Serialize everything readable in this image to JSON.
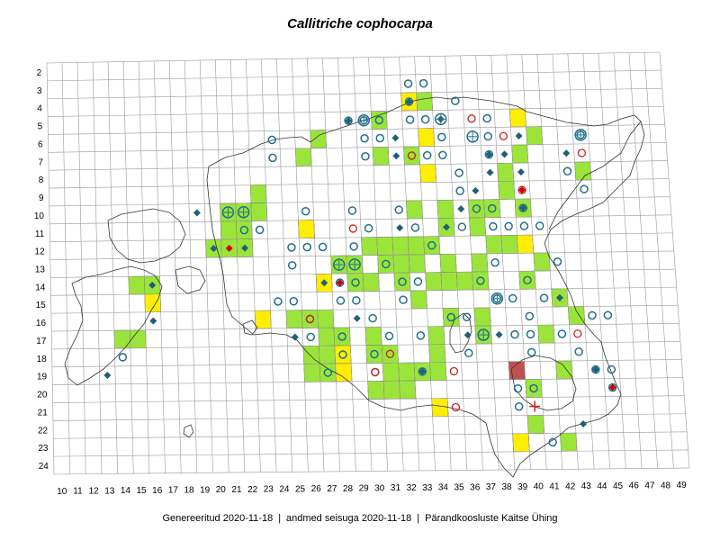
{
  "title": "Callitriche cophocarpa",
  "footer": {
    "generated": "Genereeritud 2020-11-18",
    "data_state": "andmed seisuga 2020-11-18",
    "organization": "Pärandkoosluste Kaitse Ühing",
    "separator": "|"
  },
  "grid": {
    "columns": [
      10,
      11,
      12,
      13,
      14,
      15,
      16,
      17,
      18,
      19,
      20,
      21,
      22,
      23,
      24,
      25,
      26,
      27,
      28,
      29,
      30,
      31,
      32,
      33,
      34,
      35,
      36,
      37,
      38,
      39,
      40,
      41,
      42,
      43,
      44,
      45,
      46,
      47,
      48,
      49
    ],
    "rows": [
      2,
      3,
      4,
      5,
      6,
      7,
      8,
      9,
      10,
      11,
      12,
      13,
      14,
      15,
      16,
      17,
      18,
      19,
      20,
      21,
      22,
      23,
      24
    ]
  },
  "colors": {
    "green_cell": "#9be53a",
    "yellow_cell": "#ffee00",
    "brown_cell": "#c0504d",
    "open_circle": "#1f6f8b",
    "red_circle": "#cc2222",
    "diamond_blue": "#1f5f7a",
    "diamond_red": "#cc0000",
    "grid_line": "#999999",
    "coast_line": "#333333"
  },
  "cells": {
    "green": [
      [
        34,
        4
      ],
      [
        31,
        5
      ],
      [
        27,
        6
      ],
      [
        41,
        6
      ],
      [
        26,
        7
      ],
      [
        31,
        7
      ],
      [
        33,
        7
      ],
      [
        40,
        7
      ],
      [
        39,
        8
      ],
      [
        23,
        9
      ],
      [
        39,
        9
      ],
      [
        21,
        10
      ],
      [
        22,
        10
      ],
      [
        23,
        10
      ],
      [
        33,
        10
      ],
      [
        35,
        10
      ],
      [
        37,
        10
      ],
      [
        38,
        10
      ],
      [
        40,
        10
      ],
      [
        21,
        11
      ],
      [
        22,
        11
      ],
      [
        26,
        11
      ],
      [
        35,
        11
      ],
      [
        37,
        11
      ],
      [
        20,
        12
      ],
      [
        21,
        12
      ],
      [
        22,
        12
      ],
      [
        30,
        12
      ],
      [
        31,
        12
      ],
      [
        32,
        12
      ],
      [
        33,
        12
      ],
      [
        34,
        12
      ],
      [
        38,
        12
      ],
      [
        39,
        12
      ],
      [
        28,
        13
      ],
      [
        29,
        13
      ],
      [
        31,
        13
      ],
      [
        32,
        13
      ],
      [
        33,
        13
      ],
      [
        35,
        13
      ],
      [
        37,
        13
      ],
      [
        41,
        13
      ],
      [
        15,
        14
      ],
      [
        16,
        14
      ],
      [
        29,
        14
      ],
      [
        30,
        14
      ],
      [
        32,
        14
      ],
      [
        34,
        14
      ],
      [
        35,
        14
      ],
      [
        36,
        14
      ],
      [
        37,
        14
      ],
      [
        40,
        14
      ],
      [
        33,
        15
      ],
      [
        42,
        15
      ],
      [
        25,
        16
      ],
      [
        26,
        16
      ],
      [
        27,
        16
      ],
      [
        35,
        16
      ],
      [
        37,
        16
      ],
      [
        43,
        16
      ],
      [
        14,
        17
      ],
      [
        15,
        17
      ],
      [
        27,
        17
      ],
      [
        28,
        17
      ],
      [
        30,
        17
      ],
      [
        34,
        17
      ],
      [
        37,
        17
      ],
      [
        41,
        17
      ],
      [
        26,
        18
      ],
      [
        27,
        18
      ],
      [
        30,
        18
      ],
      [
        31,
        18
      ],
      [
        34,
        18
      ],
      [
        26,
        19
      ],
      [
        27,
        19
      ],
      [
        31,
        19
      ],
      [
        32,
        19
      ],
      [
        33,
        19
      ],
      [
        34,
        19
      ],
      [
        42,
        19
      ],
      [
        30,
        20
      ],
      [
        31,
        20
      ],
      [
        32,
        20
      ],
      [
        40,
        20
      ],
      [
        39,
        23
      ],
      [
        42,
        23
      ],
      [
        40,
        22
      ],
      [
        44,
        8
      ]
    ],
    "yellow": [
      [
        33,
        4
      ],
      [
        40,
        5
      ],
      [
        34,
        6
      ],
      [
        34,
        8
      ],
      [
        26,
        11
      ],
      [
        40,
        12
      ],
      [
        16,
        15
      ],
      [
        27,
        14
      ],
      [
        23,
        16
      ],
      [
        28,
        18
      ],
      [
        28,
        19
      ],
      [
        34,
        21
      ],
      [
        39,
        23
      ]
    ],
    "brown": [
      [
        39,
        19
      ]
    ]
  },
  "markers": {
    "open_circle": [
      [
        33,
        3
      ],
      [
        34,
        3
      ],
      [
        33,
        4
      ],
      [
        36,
        4
      ],
      [
        29,
        5
      ],
      [
        30,
        5
      ],
      [
        31,
        5
      ],
      [
        33,
        5
      ],
      [
        34,
        5
      ],
      [
        38,
        5
      ],
      [
        24,
        6
      ],
      [
        30,
        6
      ],
      [
        31,
        6
      ],
      [
        35,
        6
      ],
      [
        38,
        6
      ],
      [
        44,
        6
      ],
      [
        24,
        7
      ],
      [
        30,
        7
      ],
      [
        34,
        7
      ],
      [
        35,
        7
      ],
      [
        38,
        7
      ],
      [
        43,
        8
      ],
      [
        36,
        8
      ],
      [
        36,
        9
      ],
      [
        44,
        9
      ],
      [
        26,
        10
      ],
      [
        29,
        10
      ],
      [
        32,
        10
      ],
      [
        38,
        10
      ],
      [
        40,
        10
      ],
      [
        37,
        10
      ],
      [
        22,
        11
      ],
      [
        23,
        11
      ],
      [
        30,
        11
      ],
      [
        33,
        11
      ],
      [
        36,
        11
      ],
      [
        38,
        11
      ],
      [
        39,
        11
      ],
      [
        40,
        11
      ],
      [
        41,
        11
      ],
      [
        25,
        12
      ],
      [
        26,
        12
      ],
      [
        27,
        12
      ],
      [
        29,
        12
      ],
      [
        34,
        12
      ],
      [
        25,
        13
      ],
      [
        31,
        13
      ],
      [
        38,
        13
      ],
      [
        42,
        13
      ],
      [
        28,
        14
      ],
      [
        29,
        14
      ],
      [
        32,
        14
      ],
      [
        33,
        14
      ],
      [
        37,
        14
      ],
      [
        40,
        14
      ],
      [
        24,
        15
      ],
      [
        25,
        15
      ],
      [
        28,
        15
      ],
      [
        29,
        15
      ],
      [
        32,
        15
      ],
      [
        38,
        15
      ],
      [
        39,
        15
      ],
      [
        41,
        15
      ],
      [
        26,
        16
      ],
      [
        30,
        16
      ],
      [
        35,
        16
      ],
      [
        36,
        16
      ],
      [
        40,
        16
      ],
      [
        44,
        16
      ],
      [
        45,
        16
      ],
      [
        26,
        17
      ],
      [
        28,
        17
      ],
      [
        31,
        17
      ],
      [
        33,
        17
      ],
      [
        39,
        17
      ],
      [
        40,
        17
      ],
      [
        42,
        17
      ],
      [
        14,
        18
      ],
      [
        28,
        18
      ],
      [
        30,
        18
      ],
      [
        36,
        18
      ],
      [
        40,
        18
      ],
      [
        43,
        18
      ],
      [
        27,
        19
      ],
      [
        30,
        19
      ],
      [
        33,
        19
      ],
      [
        44,
        19
      ],
      [
        45,
        19
      ],
      [
        39,
        20
      ],
      [
        40,
        20
      ],
      [
        45,
        20
      ],
      [
        39,
        21
      ],
      [
        41,
        23
      ]
    ],
    "red_circle": [
      [
        37,
        5
      ],
      [
        39,
        6
      ],
      [
        44,
        7
      ],
      [
        33,
        7
      ],
      [
        40,
        9
      ],
      [
        29,
        11
      ],
      [
        26,
        16
      ],
      [
        43,
        17
      ],
      [
        31,
        18
      ],
      [
        35,
        19
      ],
      [
        30,
        19
      ],
      [
        35,
        21
      ]
    ],
    "diamond_blue": [
      [
        33,
        4
      ],
      [
        29,
        5
      ],
      [
        35,
        5
      ],
      [
        40,
        6
      ],
      [
        32,
        6
      ],
      [
        38,
        7
      ],
      [
        43,
        7
      ],
      [
        39,
        7
      ],
      [
        32,
        7
      ],
      [
        40,
        8
      ],
      [
        38,
        8
      ],
      [
        37,
        9
      ],
      [
        36,
        10
      ],
      [
        35,
        11
      ],
      [
        32,
        11
      ],
      [
        19,
        10
      ],
      [
        20,
        12
      ],
      [
        22,
        12
      ],
      [
        16,
        14
      ],
      [
        27,
        14
      ],
      [
        42,
        15
      ],
      [
        16,
        16
      ],
      [
        29,
        16
      ],
      [
        25,
        17
      ],
      [
        36,
        17
      ],
      [
        38,
        17
      ],
      [
        13,
        19
      ],
      [
        44,
        19
      ],
      [
        43,
        22
      ],
      [
        44,
        19
      ],
      [
        40,
        10
      ],
      [
        33,
        19
      ]
    ],
    "diamond_red": [
      [
        21,
        12
      ],
      [
        28,
        14
      ],
      [
        45,
        20
      ],
      [
        40,
        9
      ]
    ],
    "circle_plus": [
      [
        30,
        5
      ],
      [
        37,
        6
      ],
      [
        29,
        13
      ],
      [
        38,
        15
      ],
      [
        21,
        10
      ],
      [
        22,
        10
      ],
      [
        35,
        5
      ],
      [
        44,
        6
      ],
      [
        28,
        13
      ],
      [
        37,
        17
      ]
    ],
    "red_cross": [
      [
        40,
        21
      ]
    ]
  }
}
